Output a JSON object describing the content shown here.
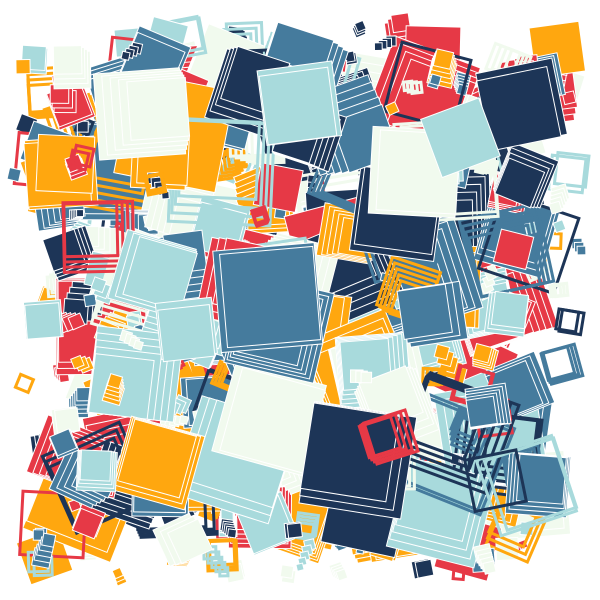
{
  "artwork": {
    "background": "#ffffff",
    "palette": {
      "red": "#e63946",
      "off_white": "#f1faee",
      "light_teal": "#a8dadc",
      "steel_blue": "#457b9d",
      "navy": "#1d3557",
      "orange": "#ffa70f"
    },
    "shape": "rotated-square",
    "styles": [
      "filled-stack",
      "outline-stack"
    ]
  }
}
